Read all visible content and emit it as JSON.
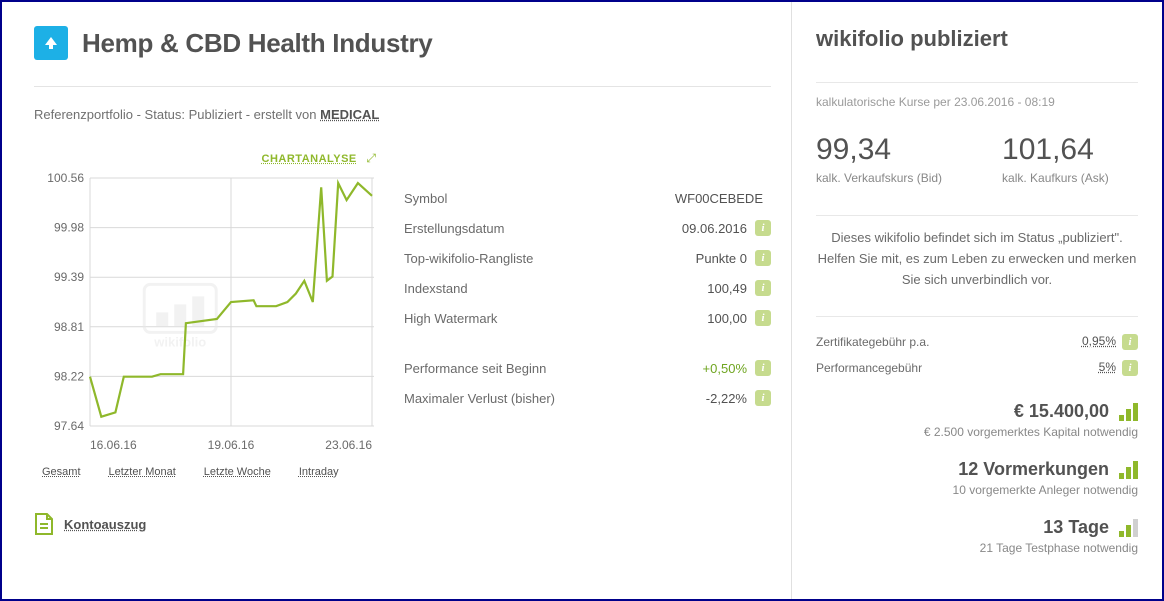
{
  "header": {
    "title": "Hemp & CBD Health Industry",
    "subline_prefix": "Referenzportfolio - Status: Publiziert - erstellt von ",
    "author": "MEDICAL"
  },
  "chart": {
    "link_label": "CHARTANALYSE",
    "y_ticks": [
      "100.56",
      "99.98",
      "99.39",
      "98.81",
      "98.22",
      "97.64"
    ],
    "ylim": [
      97.64,
      100.56
    ],
    "x_ticks": [
      "16.06.16",
      "19.06.16",
      "23.06.16"
    ],
    "line_color": "#8fb82b",
    "grid_color": "#d9d9d9",
    "axis_text_color": "#6a6a6a",
    "watermark": "wikifolio",
    "series": [
      {
        "x": 0.0,
        "y": 98.22
      },
      {
        "x": 0.04,
        "y": 97.75
      },
      {
        "x": 0.09,
        "y": 97.8
      },
      {
        "x": 0.12,
        "y": 98.22
      },
      {
        "x": 0.22,
        "y": 98.22
      },
      {
        "x": 0.25,
        "y": 98.25
      },
      {
        "x": 0.33,
        "y": 98.25
      },
      {
        "x": 0.34,
        "y": 98.85
      },
      {
        "x": 0.45,
        "y": 98.9
      },
      {
        "x": 0.5,
        "y": 99.1
      },
      {
        "x": 0.58,
        "y": 99.12
      },
      {
        "x": 0.59,
        "y": 99.05
      },
      {
        "x": 0.66,
        "y": 99.05
      },
      {
        "x": 0.7,
        "y": 99.1
      },
      {
        "x": 0.73,
        "y": 99.2
      },
      {
        "x": 0.76,
        "y": 99.35
      },
      {
        "x": 0.79,
        "y": 99.1
      },
      {
        "x": 0.82,
        "y": 100.45
      },
      {
        "x": 0.84,
        "y": 99.35
      },
      {
        "x": 0.86,
        "y": 99.4
      },
      {
        "x": 0.88,
        "y": 100.5
      },
      {
        "x": 0.91,
        "y": 100.3
      },
      {
        "x": 0.95,
        "y": 100.5
      },
      {
        "x": 1.0,
        "y": 100.35
      }
    ],
    "timeranges": {
      "all": "Gesamt",
      "month": "Letzter Monat",
      "week": "Letzte Woche",
      "intraday": "Intraday"
    },
    "watermark_color": "#e8e8e8"
  },
  "metrics": {
    "symbol": {
      "label": "Symbol",
      "value": "WF00CEBEDE",
      "info": false
    },
    "created": {
      "label": "Erstellungsdatum",
      "value": "09.06.2016",
      "info": true
    },
    "rank": {
      "label": "Top-wikifolio-Rangliste",
      "value": "Punkte 0",
      "info": true
    },
    "index": {
      "label": "Indexstand",
      "value": "100,49",
      "info": true
    },
    "hwm": {
      "label": "High Watermark",
      "value": "100,00",
      "info": true
    },
    "perf": {
      "label": "Performance seit Beginn",
      "value": "+0,50%",
      "info": true,
      "positive": true
    },
    "maxloss": {
      "label": "Maximaler Verlust (bisher)",
      "value": "-2,22%",
      "info": true
    }
  },
  "konto_label": "Kontoauszug",
  "right": {
    "title": "wikifolio publiziert",
    "timestamp": "kalkulatorische Kurse per 23.06.2016 - 08:19",
    "bid": {
      "value": "99,34",
      "label": "kalk. Verkaufskurs (Bid)"
    },
    "ask": {
      "value": "101,64",
      "label": "kalk. Kaufkurs (Ask)"
    },
    "status_text": "Dieses wikifolio befindet sich im Status „publiziert\". Helfen Sie mit, es zum Leben zu erwecken und merken Sie sich unverbindlich vor.",
    "fees": {
      "cert": {
        "label": "Zertifikategebühr p.a.",
        "value": "0,95%"
      },
      "perf": {
        "label": "Performancegebühr",
        "value": "5%"
      }
    },
    "stats": {
      "capital": {
        "main": "€ 15.400,00",
        "sub": "€ 2.500 vorgemerktes Kapital notwendig",
        "bars": 3
      },
      "bookmarks": {
        "main": "12 Vormerkungen",
        "sub": "10 vorgemerkte Anleger notwendig",
        "bars": 3
      },
      "days": {
        "main": "13 Tage",
        "sub": "21 Tage Testphase notwendig",
        "bars": 2
      }
    }
  },
  "colors": {
    "accent": "#8fb82b",
    "brand": "#1db0e6"
  }
}
